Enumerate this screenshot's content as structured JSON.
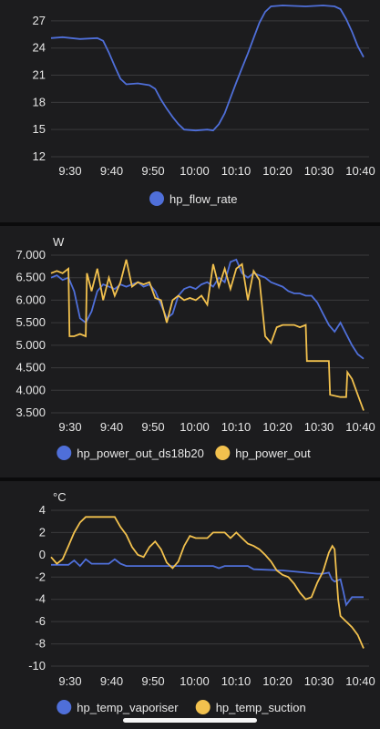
{
  "chart_data": [
    {
      "type": "line",
      "x": [
        "9:30",
        "9:40",
        "9:50",
        "10:00",
        "10:10",
        "10:20",
        "10:30",
        "10:40"
      ],
      "ylim": [
        12,
        28.5
      ],
      "yticks": [
        "12",
        "15",
        "18",
        "21",
        "24",
        "27"
      ],
      "ytick_values": [
        12,
        15,
        18,
        21,
        24,
        27
      ],
      "unit": "",
      "series": [
        {
          "name": "hp_flow_rate",
          "color": "#4f6fd9",
          "points": [
            [
              0,
              25.1
            ],
            [
              2,
              25.2
            ],
            [
              5,
              25.0
            ],
            [
              8,
              25.1
            ],
            [
              9,
              24.8
            ],
            [
              10,
              23.5
            ],
            [
              11,
              22.0
            ],
            [
              12,
              20.6
            ],
            [
              13,
              20.0
            ],
            [
              15,
              20.1
            ],
            [
              17,
              19.9
            ],
            [
              18,
              19.5
            ],
            [
              19,
              18.3
            ],
            [
              20,
              17.3
            ],
            [
              21,
              16.4
            ],
            [
              22,
              15.6
            ],
            [
              23,
              15.0
            ],
            [
              25,
              14.9
            ],
            [
              27,
              15.0
            ],
            [
              28,
              14.9
            ],
            [
              29,
              15.6
            ],
            [
              30,
              16.8
            ],
            [
              31,
              18.5
            ],
            [
              32,
              20.2
            ],
            [
              33,
              21.8
            ],
            [
              34,
              23.4
            ],
            [
              35,
              25.1
            ],
            [
              36,
              26.8
            ],
            [
              37,
              28.0
            ],
            [
              38,
              28.6
            ],
            [
              40,
              28.7
            ],
            [
              44,
              28.6
            ],
            [
              47,
              28.7
            ],
            [
              49,
              28.6
            ],
            [
              50,
              28.3
            ],
            [
              51,
              27.2
            ],
            [
              52,
              25.8
            ],
            [
              53,
              24.2
            ],
            [
              54,
              23.0
            ]
          ]
        }
      ],
      "legend": [
        "hp_flow_rate"
      ]
    },
    {
      "type": "line",
      "x": [
        "9:30",
        "9:40",
        "9:50",
        "10:00",
        "10:10",
        "10:20",
        "10:30",
        "10:40"
      ],
      "ylim": [
        3500,
        7000
      ],
      "yticks": [
        "3.500",
        "4.000",
        "4.500",
        "5.000",
        "5.500",
        "6.000",
        "6.500",
        "7.000"
      ],
      "ytick_values": [
        3500,
        4000,
        4500,
        5000,
        5500,
        6000,
        6500,
        7000
      ],
      "unit": "W",
      "series": [
        {
          "name": "hp_power_out_ds18b20",
          "color": "#4f6fd9",
          "points": [
            [
              0,
              6500
            ],
            [
              1,
              6550
            ],
            [
              2,
              6450
            ],
            [
              3,
              6500
            ],
            [
              4,
              6200
            ],
            [
              5,
              5600
            ],
            [
              6,
              5500
            ],
            [
              7,
              5750
            ],
            [
              8,
              6200
            ],
            [
              9,
              6350
            ],
            [
              10,
              6300
            ],
            [
              11,
              6250
            ],
            [
              12,
              6350
            ],
            [
              13,
              6300
            ],
            [
              14,
              6350
            ],
            [
              15,
              6400
            ],
            [
              16,
              6300
            ],
            [
              17,
              6350
            ],
            [
              18,
              6200
            ],
            [
              19,
              5900
            ],
            [
              20,
              5600
            ],
            [
              21,
              5700
            ],
            [
              22,
              6100
            ],
            [
              23,
              6250
            ],
            [
              24,
              6300
            ],
            [
              25,
              6250
            ],
            [
              26,
              6350
            ],
            [
              27,
              6400
            ],
            [
              28,
              6300
            ],
            [
              29,
              6500
            ],
            [
              30,
              6400
            ],
            [
              31,
              6850
            ],
            [
              32,
              6900
            ],
            [
              33,
              6600
            ],
            [
              34,
              6500
            ],
            [
              35,
              6600
            ],
            [
              36,
              6550
            ],
            [
              37,
              6500
            ],
            [
              38,
              6400
            ],
            [
              39,
              6350
            ],
            [
              40,
              6300
            ],
            [
              41,
              6200
            ],
            [
              42,
              6150
            ],
            [
              43,
              6150
            ],
            [
              44,
              6100
            ],
            [
              45,
              6100
            ],
            [
              46,
              5950
            ],
            [
              47,
              5700
            ],
            [
              48,
              5450
            ],
            [
              49,
              5300
            ],
            [
              50,
              5500
            ],
            [
              51,
              5250
            ],
            [
              52,
              5000
            ],
            [
              53,
              4800
            ],
            [
              54,
              4700
            ]
          ]
        },
        {
          "name": "hp_power_out",
          "color": "#f2c14e",
          "points": [
            [
              0,
              6600
            ],
            [
              1,
              6650
            ],
            [
              2,
              6600
            ],
            [
              3,
              6700
            ],
            [
              3.2,
              5200
            ],
            [
              4,
              5200
            ],
            [
              5,
              5250
            ],
            [
              6,
              5200
            ],
            [
              6.2,
              6600
            ],
            [
              7,
              6200
            ],
            [
              8,
              6700
            ],
            [
              9,
              6000
            ],
            [
              10,
              6500
            ],
            [
              11,
              6100
            ],
            [
              12,
              6400
            ],
            [
              13,
              6900
            ],
            [
              14,
              6300
            ],
            [
              15,
              6400
            ],
            [
              16,
              6350
            ],
            [
              17,
              6400
            ],
            [
              18,
              6050
            ],
            [
              19,
              6000
            ],
            [
              20,
              5500
            ],
            [
              21,
              6000
            ],
            [
              22,
              6100
            ],
            [
              23,
              6000
            ],
            [
              24,
              6050
            ],
            [
              25,
              6000
            ],
            [
              26,
              6100
            ],
            [
              27,
              5900
            ],
            [
              28,
              6800
            ],
            [
              29,
              6300
            ],
            [
              30,
              6700
            ],
            [
              31,
              6250
            ],
            [
              32,
              6700
            ],
            [
              33,
              6800
            ],
            [
              34,
              6000
            ],
            [
              35,
              6650
            ],
            [
              36,
              6450
            ],
            [
              37,
              5200
            ],
            [
              38,
              5050
            ],
            [
              39,
              5400
            ],
            [
              40,
              5450
            ],
            [
              42,
              5450
            ],
            [
              43,
              5400
            ],
            [
              44,
              5450
            ],
            [
              44.2,
              4650
            ],
            [
              45,
              4650
            ],
            [
              47,
              4650
            ],
            [
              48,
              4650
            ],
            [
              48.2,
              3900
            ],
            [
              50,
              3850
            ],
            [
              51,
              3850
            ],
            [
              51.2,
              4400
            ],
            [
              52,
              4250
            ],
            [
              53,
              3900
            ],
            [
              54,
              3550
            ]
          ]
        }
      ],
      "legend": [
        "hp_power_out_ds18b20",
        "hp_power_out"
      ]
    },
    {
      "type": "line",
      "x": [
        "9:30",
        "9:40",
        "9:50",
        "10:00",
        "10:10",
        "10:20",
        "10:30",
        "10:40"
      ],
      "ylim": [
        -10,
        4
      ],
      "yticks": [
        "-10",
        "-8",
        "-6",
        "-4",
        "-2",
        "0",
        "2",
        "4"
      ],
      "ytick_values": [
        -10,
        -8,
        -6,
        -4,
        -2,
        0,
        2,
        4
      ],
      "unit": "°C",
      "series": [
        {
          "name": "hp_temp_vaporiser",
          "color": "#4f6fd9",
          "points": [
            [
              0,
              -0.9
            ],
            [
              3,
              -0.9
            ],
            [
              4,
              -0.5
            ],
            [
              5,
              -1.0
            ],
            [
              6,
              -0.4
            ],
            [
              7,
              -0.8
            ],
            [
              10,
              -0.8
            ],
            [
              11,
              -0.4
            ],
            [
              12,
              -0.8
            ],
            [
              13,
              -1.0
            ],
            [
              20,
              -1.0
            ],
            [
              25,
              -1.0
            ],
            [
              28,
              -1.0
            ],
            [
              29,
              -1.2
            ],
            [
              30,
              -1.0
            ],
            [
              34,
              -1.0
            ],
            [
              35,
              -1.3
            ],
            [
              40,
              -1.4
            ],
            [
              44,
              -1.6
            ],
            [
              46,
              -1.7
            ],
            [
              47,
              -1.7
            ],
            [
              48,
              -1.6
            ],
            [
              48.5,
              -2.2
            ],
            [
              49,
              -2.4
            ],
            [
              50,
              -2.2
            ],
            [
              50.5,
              -3.3
            ],
            [
              51,
              -4.5
            ],
            [
              52,
              -3.8
            ],
            [
              53,
              -3.8
            ],
            [
              54,
              -3.8
            ]
          ]
        },
        {
          "name": "hp_temp_suction",
          "color": "#f2c14e",
          "points": [
            [
              0,
              -0.2
            ],
            [
              1,
              -0.8
            ],
            [
              2,
              -0.4
            ],
            [
              3,
              0.8
            ],
            [
              4,
              2.0
            ],
            [
              5,
              2.9
            ],
            [
              6,
              3.4
            ],
            [
              8,
              3.4
            ],
            [
              11,
              3.4
            ],
            [
              12,
              2.5
            ],
            [
              13,
              1.8
            ],
            [
              14,
              0.7
            ],
            [
              15,
              0
            ],
            [
              16,
              -0.2
            ],
            [
              17,
              0.7
            ],
            [
              18,
              1.2
            ],
            [
              19,
              0.5
            ],
            [
              20,
              -0.7
            ],
            [
              21,
              -1.2
            ],
            [
              22,
              -0.6
            ],
            [
              23,
              0.8
            ],
            [
              24,
              1.7
            ],
            [
              25,
              1.5
            ],
            [
              27,
              1.5
            ],
            [
              28,
              2.0
            ],
            [
              30,
              2.0
            ],
            [
              31,
              1.5
            ],
            [
              32,
              2.0
            ],
            [
              33,
              1.5
            ],
            [
              34,
              1.0
            ],
            [
              35,
              0.8
            ],
            [
              36,
              0.5
            ],
            [
              37,
              0
            ],
            [
              38,
              -0.6
            ],
            [
              39,
              -1.4
            ],
            [
              40,
              -1.8
            ],
            [
              41,
              -2.0
            ],
            [
              42,
              -2.6
            ],
            [
              43,
              -3.4
            ],
            [
              44,
              -4.0
            ],
            [
              45,
              -3.8
            ],
            [
              46,
              -2.5
            ],
            [
              47,
              -1.5
            ],
            [
              48,
              0.2
            ],
            [
              48.6,
              0.8
            ],
            [
              49,
              0.5
            ],
            [
              49.6,
              -4.0
            ],
            [
              50,
              -5.5
            ],
            [
              51,
              -6.0
            ],
            [
              52,
              -6.5
            ],
            [
              53,
              -7.2
            ],
            [
              54,
              -8.4
            ]
          ]
        }
      ],
      "legend": [
        "hp_temp_vaporiser",
        "hp_temp_suction"
      ]
    }
  ],
  "chart_x_range": [
    0,
    54
  ]
}
